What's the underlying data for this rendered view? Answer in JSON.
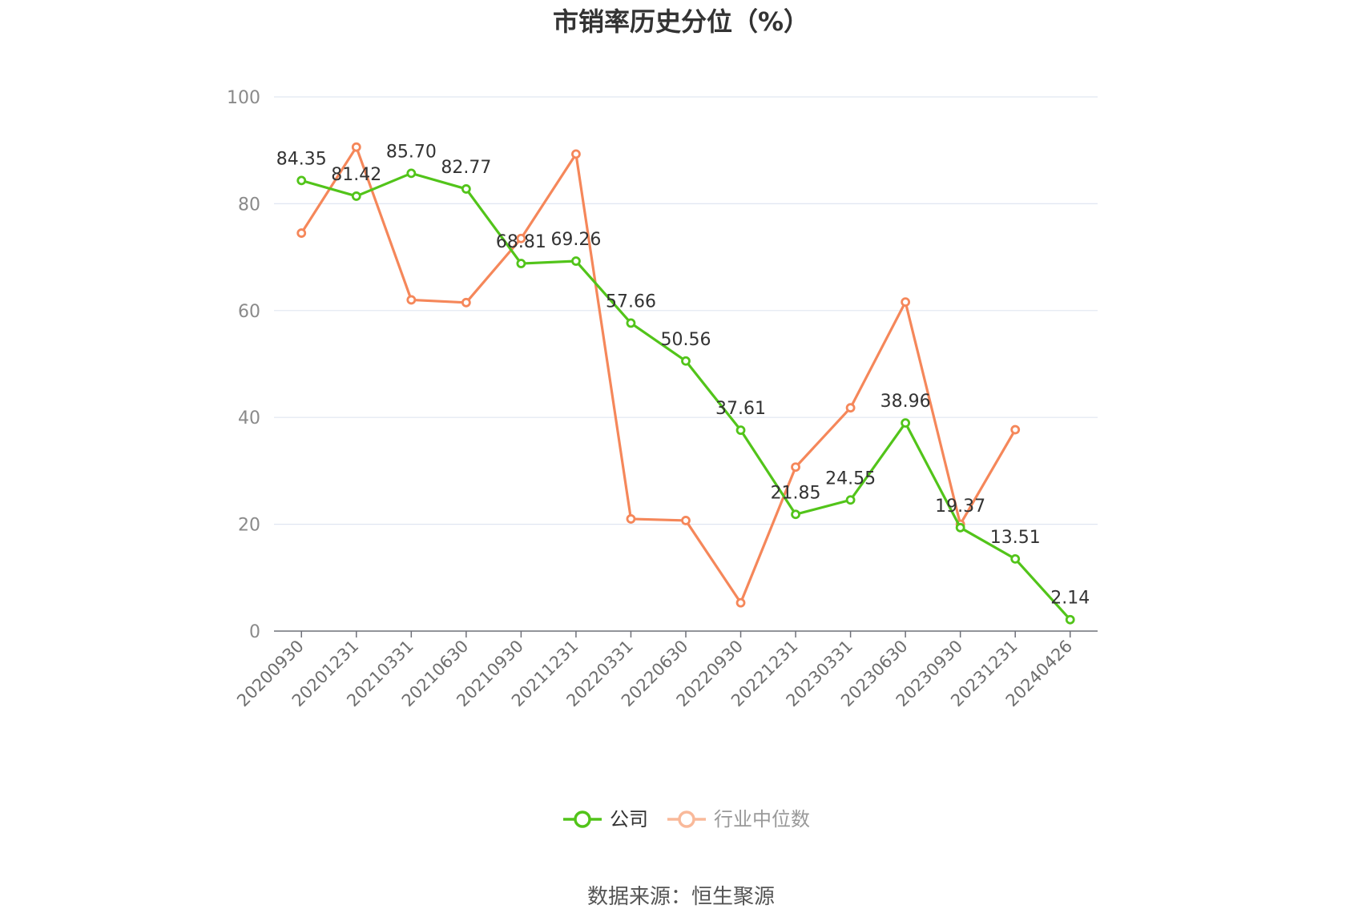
{
  "chart_data": {
    "type": "line",
    "title": "市销率历史分位（%）",
    "categories": [
      "20200930",
      "20201231",
      "20210331",
      "20210630",
      "20210930",
      "20211231",
      "20220331",
      "20220630",
      "20220930",
      "20221231",
      "20230331",
      "20230630",
      "20230930",
      "20231231",
      "20240426"
    ],
    "series": [
      {
        "name": "公司",
        "color": "#52c41a",
        "values": [
          84.35,
          81.42,
          85.7,
          82.77,
          68.81,
          69.26,
          57.66,
          50.56,
          37.61,
          21.85,
          24.55,
          38.96,
          19.37,
          13.51,
          2.14
        ],
        "labels": [
          "84.35",
          "81.42",
          "85.70",
          "82.77",
          "68.81",
          "69.26",
          "57.66",
          "50.56",
          "37.61",
          "21.85",
          "24.55",
          "38.96",
          "19.37",
          "13.51",
          "2.14"
        ],
        "show_labels": true
      },
      {
        "name": "行业中位数",
        "color": "#f5875a",
        "values": [
          74.5,
          90.6,
          62.0,
          61.5,
          73.5,
          89.3,
          21.0,
          20.7,
          5.3,
          30.7,
          41.8,
          61.6,
          20.0,
          37.7,
          null
        ],
        "show_labels": false
      }
    ],
    "yticks": [
      "0",
      "20",
      "40",
      "60",
      "80",
      "100"
    ],
    "ylim": [
      0,
      100
    ],
    "grid": true,
    "legend_position": "bottom-center",
    "legend_inactive_color": "#999999"
  },
  "footer": {
    "source": "数据来源：恒生聚源"
  }
}
